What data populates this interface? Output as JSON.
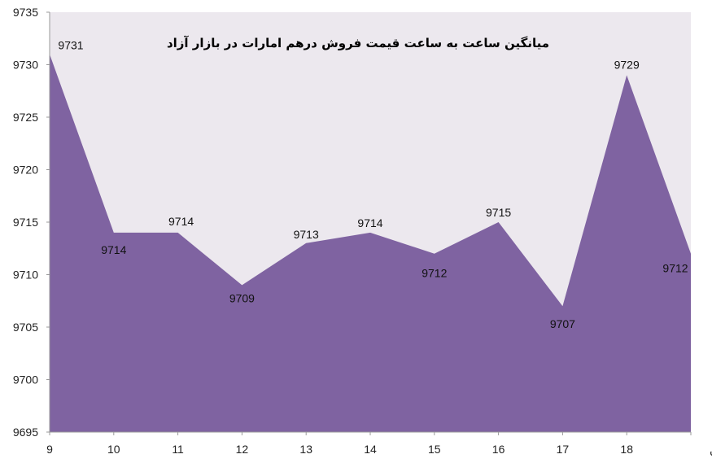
{
  "chart_data": {
    "type": "area",
    "title": "میانگین ساعت به ساعت قیمت فروش درهم امارات در بازار آزاد",
    "xlabel": "",
    "ylabel": "",
    "categories": [
      "9",
      "10",
      "11",
      "12",
      "13",
      "14",
      "15",
      "16",
      "17",
      "18",
      "میانگین"
    ],
    "series": [
      {
        "values": [
          9731,
          9714,
          9714,
          9709,
          9713,
          9714,
          9712,
          9715,
          9707,
          9729,
          9712
        ]
      }
    ],
    "ylim": [
      9695,
      9735
    ],
    "yticks": [
      "9695",
      "9700",
      "9705",
      "9710",
      "9715",
      "9720",
      "9725",
      "9730",
      "9735"
    ],
    "grid": false,
    "colors": {
      "fill": "#7f63a1",
      "plot_background": "#ece8ee",
      "axis": "#9a9a9a"
    }
  }
}
